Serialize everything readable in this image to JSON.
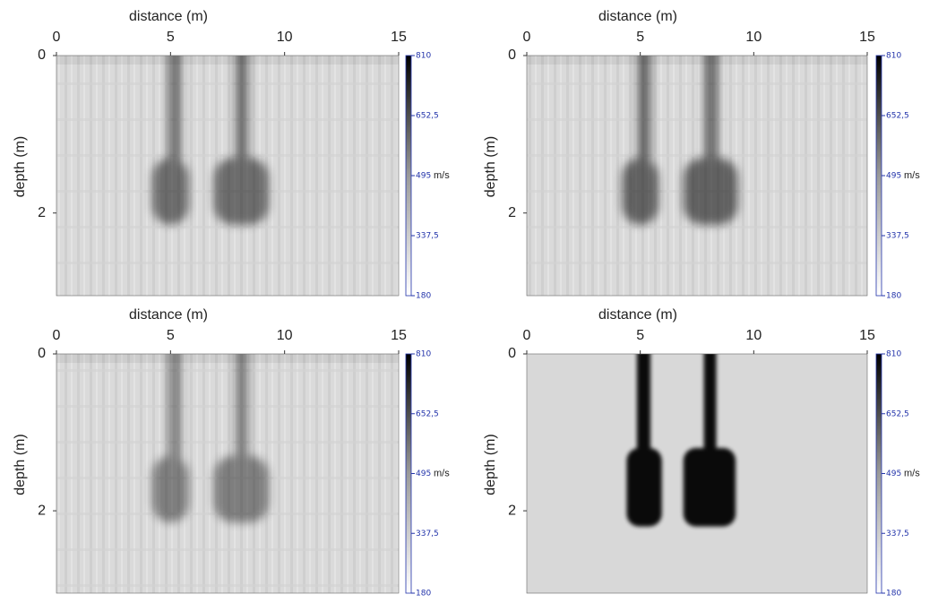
{
  "chart_data": [
    {
      "type": "heatmap",
      "xlabel": "distance (m)",
      "ylabel": "depth (m)",
      "xlim": [
        0,
        15
      ],
      "xticks": [
        0,
        5,
        10,
        15
      ],
      "ylim": [
        0,
        3.05
      ],
      "yticks": [
        0,
        2
      ],
      "clim": [
        180,
        810
      ],
      "cticks": [
        {
          "value": 810,
          "label": "810"
        },
        {
          "value": 652.5,
          "label": "652,5"
        },
        {
          "value": 495,
          "label": "495"
        },
        {
          "value": 337.5,
          "label": "337,5"
        },
        {
          "value": 180,
          "label": "180"
        }
      ],
      "cunit": "m/s"
    },
    {
      "type": "heatmap",
      "xlabel": "distance (m)",
      "ylabel": "depth (m)",
      "xlim": [
        0,
        15
      ],
      "xticks": [
        0,
        5,
        10,
        15
      ],
      "ylim": [
        0,
        3.05
      ],
      "yticks": [
        0,
        2
      ],
      "clim": [
        180,
        810
      ],
      "cticks": [
        {
          "value": 810,
          "label": "810"
        },
        {
          "value": 652.5,
          "label": "652,5"
        },
        {
          "value": 495,
          "label": "495"
        },
        {
          "value": 337.5,
          "label": "337,5"
        },
        {
          "value": 180,
          "label": "180"
        }
      ],
      "cunit": "m/s"
    },
    {
      "type": "heatmap",
      "xlabel": "distance (m)",
      "ylabel": "depth (m)",
      "xlim": [
        0,
        15
      ],
      "xticks": [
        0,
        5,
        10,
        15
      ],
      "ylim": [
        0,
        3.05
      ],
      "yticks": [
        0,
        2
      ],
      "clim": [
        180,
        810
      ],
      "cticks": [
        {
          "value": 810,
          "label": "810"
        },
        {
          "value": 652.5,
          "label": "652,5"
        },
        {
          "value": 495,
          "label": "495"
        },
        {
          "value": 337.5,
          "label": "337,5"
        },
        {
          "value": 180,
          "label": "180"
        }
      ],
      "cunit": "m/s"
    },
    {
      "type": "heatmap",
      "xlabel": "distance (m)",
      "ylabel": "depth (m)",
      "xlim": [
        0,
        15
      ],
      "xticks": [
        0,
        5,
        10,
        15
      ],
      "ylim": [
        0,
        3.05
      ],
      "yticks": [
        0,
        2
      ],
      "clim": [
        180,
        810
      ],
      "cticks": [
        {
          "value": 810,
          "label": "810"
        },
        {
          "value": 652.5,
          "label": "652,5"
        },
        {
          "value": 495,
          "label": "495"
        },
        {
          "value": 337.5,
          "label": "337,5"
        },
        {
          "value": 180,
          "label": "180"
        }
      ],
      "cunit": "m/s"
    }
  ]
}
